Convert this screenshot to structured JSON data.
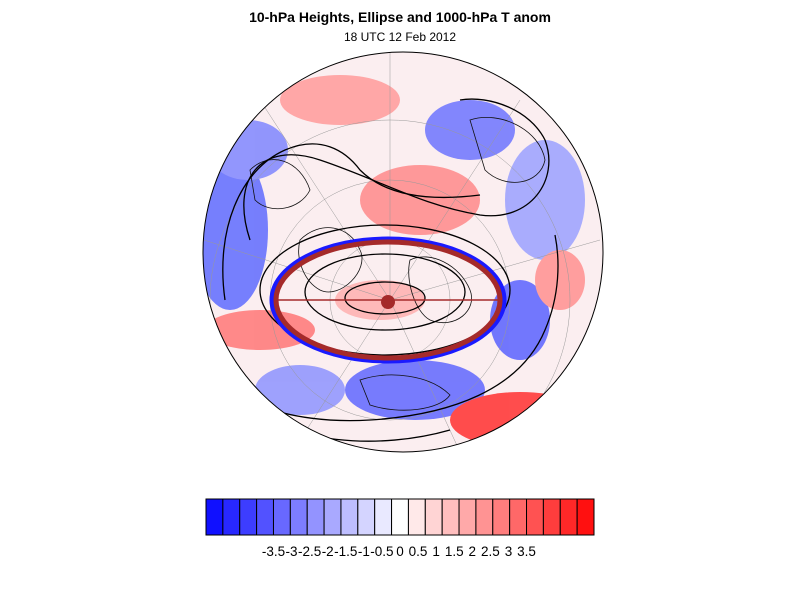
{
  "figure": {
    "title": "10-hPa Heights, Ellipse and 1000-hPa T anom",
    "subtitle": "18 UTC 12 Feb 2012"
  },
  "map": {
    "projection": "polar-orthographic",
    "field": "1000-hPa temperature anomaly shading",
    "contours": "10-hPa geopotential height",
    "overlay": "fitted ellipse with centroid marker",
    "ellipse_color": "#a52a2a",
    "ellipse_edge_color": "#1a1aff",
    "contour_color": "#000000"
  },
  "colorbar": {
    "colors": [
      "#1010ff",
      "#2828ff",
      "#3d3dff",
      "#5252ff",
      "#6868ff",
      "#7d7dff",
      "#9393ff",
      "#a9a9ff",
      "#bebeff",
      "#d4d4ff",
      "#e9e9ff",
      "#ffffff",
      "#ffe9e9",
      "#ffd4d4",
      "#ffbebe",
      "#ffa9a9",
      "#ff9393",
      "#ff7d7d",
      "#ff6868",
      "#ff5252",
      "#ff3d3d",
      "#ff2828",
      "#ff1010"
    ],
    "labels": [
      "-3.5",
      "-3",
      "-2.5",
      "-2",
      "-1.5",
      "-1",
      "-0.5",
      "0",
      "0.5",
      "1",
      "1.5",
      "2",
      "2.5",
      "3",
      "3.5"
    ]
  }
}
